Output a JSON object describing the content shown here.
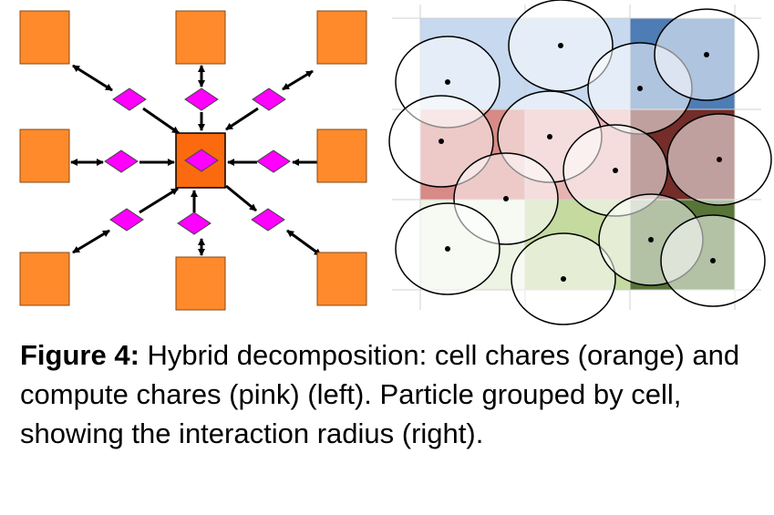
{
  "figure": {
    "colors": {
      "cell_chare": "#fe8a2c",
      "center_cell_chare": "#fb6a0e",
      "compute_chare": "#ff00ff",
      "blue_cell": "#c6d9ef",
      "dark_blue_cell": "#4e7cb5",
      "pink_cell": "#e7b3b2",
      "salmon_cell": "#d78a86",
      "maroon_cell": "#742d28",
      "light_green_cell": "#eef4e4",
      "green_cell": "#c5da9f",
      "dark_green_cell": "#587538"
    },
    "icons": {
      "cell_chare": "orange-square",
      "compute_chare": "magenta-diamond",
      "particle": "black-dot",
      "interaction_radius": "circle-outline"
    }
  },
  "caption": {
    "label": "Figure 4:",
    "text": " Hybrid decomposition: cell chares (orange) and compute chares (pink) (left). Particle grouped by cell, showing the interaction radius (right)."
  }
}
